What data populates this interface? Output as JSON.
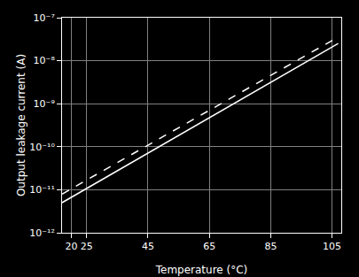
{
  "chart_data": {
    "type": "line",
    "xlabel": "Temperature (°C)",
    "ylabel": "Output leakage current (A)",
    "x": [
      17,
      107
    ],
    "series": [
      {
        "color": "#ffffff",
        "line_style": "solid",
        "values": [
          5.01187233627272e-12,
          2.51188643150958e-08
        ]
      },
      {
        "color": "#ffffff",
        "line_style": "dashed",
        "values": [
          7.94328234724281e-12,
          3.54813389233575e-08
        ]
      }
    ],
    "xlim": [
      17,
      108
    ],
    "xticks": [
      20,
      25,
      45,
      65,
      85,
      105
    ],
    "ylim": [
      1e-12,
      1e-07
    ],
    "yticks": [
      {
        "value": 1e-12,
        "label": "10⁻¹²"
      },
      {
        "value": 1e-11,
        "label": "10⁻¹¹"
      },
      {
        "value": 1e-10,
        "label": "10⁻¹⁰"
      },
      {
        "value": 1e-09,
        "label": "10⁻⁹"
      },
      {
        "value": 1e-08,
        "label": "10⁻⁸"
      },
      {
        "value": 1e-07,
        "label": "10⁻⁷"
      }
    ],
    "log": "y",
    "grid": true
  }
}
